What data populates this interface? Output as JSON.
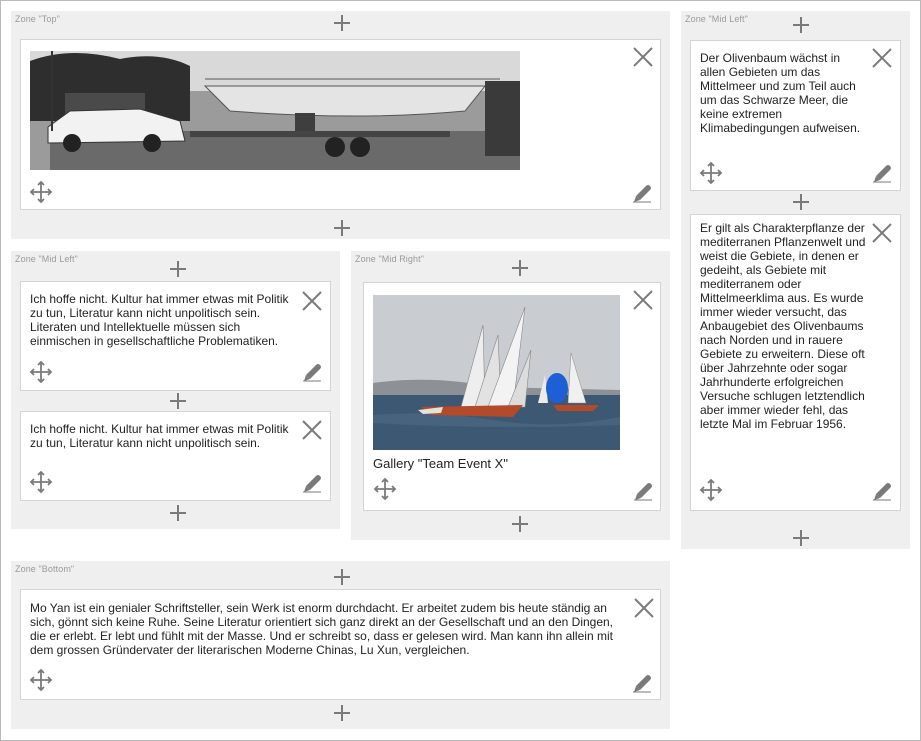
{
  "zones": {
    "top": {
      "label": "Zone \"Top\""
    },
    "mid_left_right_column": {
      "label": "Zone \"Mid Left\""
    },
    "mid_left": {
      "label": "Zone \"Mid Left\""
    },
    "mid_right": {
      "label": "Zone \"Mid Right\""
    },
    "bottom": {
      "label": "Zone \"Bottom\""
    }
  },
  "cards": {
    "olive_1": {
      "text": "Der Olivenbaum wächst in allen Gebieten um das Mittelmeer und zum Teil auch um das Schwarze Meer, die keine extremen Klimabedingungen aufweisen."
    },
    "olive_2": {
      "text": "Er gilt als Charakterpflanze der mediterranen Pflanzenwelt und weist die Gebiete, in denen er gedeiht, als Gebiete mit mediterranem oder Mittelmeerklima aus. Es wurde immer wieder versucht, das Anbaugebiet des Olivenbaums nach Norden und in rauere Gebiete zu erweitern. Diese oft über Jahrzehnte oder sogar Jahrhunderte erfolgreichen Versuche schlugen letztendlich aber immer wieder fehl, das letzte Mal im Februar 1956."
    },
    "culture_1": {
      "text": "Ich hoffe nicht. Kultur hat immer etwas mit Politik zu tun, Literatur kann nicht unpolitisch sein. Literaten und Intellektuelle müssen sich einmischen in gesellschaftliche Problematiken."
    },
    "culture_2": {
      "text": "Ich hoffe nicht. Kultur hat immer etwas mit Politik zu tun, Literatur kann nicht unpolitisch sein."
    },
    "gallery": {
      "caption": "Gallery \"Team Event X\""
    },
    "moyan": {
      "text": "Mo Yan ist ein genialer Schriftsteller, sein Werk ist enorm durchdacht. Er arbeitet zudem bis heute ständig an sich, gönnt sich keine Ruhe. Seine Literatur orientiert sich ganz direkt an der Gesellschaft und an den Dingen, die er erlebt. Er lebt und fühlt mit der Masse. Und er schreibt so, dass er gelesen wird. Man kann ihn allein mit dem grossen Gründervater der literarischen Moderne Chinas, Lu Xun, vergleichen."
    }
  },
  "icons": {
    "add": "plus-icon",
    "remove": "close-icon",
    "move": "move-icon",
    "edit": "pencil-icon"
  },
  "colors": {
    "zone_bg": "#efefef",
    "icon": "#7a7a7a",
    "card_border": "#d4d4d4"
  }
}
